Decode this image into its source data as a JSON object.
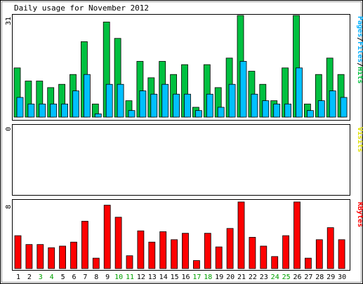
{
  "chart_data": {
    "type": "bar",
    "title": "Daily usage for November 2012",
    "days": [
      "1",
      "2",
      "3",
      "4",
      "5",
      "6",
      "7",
      "8",
      "9",
      "10",
      "11",
      "12",
      "13",
      "14",
      "15",
      "16",
      "17",
      "18",
      "19",
      "20",
      "21",
      "22",
      "23",
      "24",
      "25",
      "26",
      "27",
      "28",
      "29",
      "30"
    ],
    "weekend_days": [
      "3",
      "4",
      "10",
      "11",
      "17",
      "18",
      "24",
      "25"
    ],
    "panels": [
      {
        "name": "hits-files-pages",
        "ymax_label": "31",
        "ymax": 31,
        "legend": [
          {
            "text": "Pages",
            "color": "#00b0ff"
          },
          {
            "text": "/",
            "color": "#000000"
          },
          {
            "text": "Files",
            "color": "#00b0ff"
          },
          {
            "text": "/",
            "color": "#000000"
          },
          {
            "text": "Hits",
            "color": "#00b0ff"
          }
        ],
        "series": [
          {
            "name": "Hits",
            "color": "#00c040",
            "values": [
              15,
              11,
              11,
              9,
              10,
              13,
              23,
              4,
              29,
              24,
              5,
              17,
              12,
              17,
              13,
              16,
              3,
              16,
              9,
              18,
              31,
              14,
              10,
              5,
              15,
              31,
              4,
              13,
              18,
              13
            ]
          },
          {
            "name": "Files",
            "color": "#00c0ff",
            "values": [
              6,
              4,
              4,
              4,
              4,
              8,
              13,
              1,
              10,
              10,
              2,
              8,
              7,
              10,
              7,
              7,
              2,
              7,
              3,
              10,
              17,
              7,
              5,
              4,
              4,
              15,
              2,
              5,
              8,
              6
            ]
          }
        ]
      },
      {
        "name": "visits",
        "ymax_label": "0",
        "ymax": 0,
        "legend": [
          {
            "text": "Visits",
            "color": "#e0e000"
          }
        ],
        "series": []
      },
      {
        "name": "kbytes",
        "ymax_label": "8",
        "ymax": 8,
        "legend": [
          {
            "text": "KBytes",
            "color": "#ff0000"
          }
        ],
        "series": [
          {
            "name": "KBytes",
            "color": "#ff0000",
            "values": [
              4.1,
              3.0,
              3.0,
              2.6,
              2.8,
              3.3,
              5.9,
              1.3,
              7.9,
              6.4,
              1.6,
              4.7,
              3.3,
              4.6,
              3.6,
              4.4,
              1.0,
              4.4,
              2.7,
              5.0,
              8.3,
              3.9,
              2.8,
              1.5,
              4.1,
              8.3,
              1.3,
              3.6,
              5.1,
              3.6
            ]
          }
        ]
      }
    ]
  }
}
